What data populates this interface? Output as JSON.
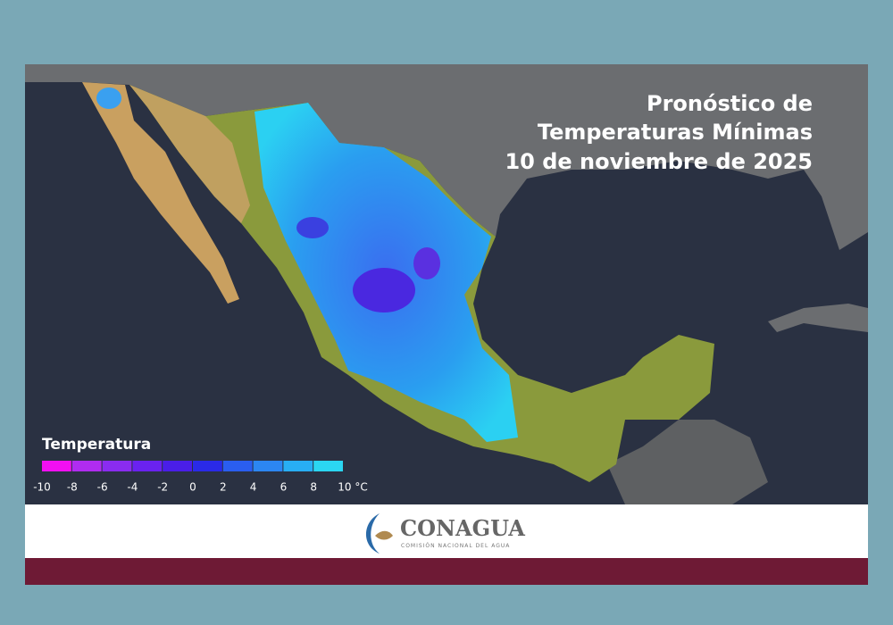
{
  "title": {
    "lines": [
      "Pronóstico de",
      "Temperaturas Mínimas",
      "10 de noviembre de 2025"
    ]
  },
  "legend": {
    "title": "Temperatura",
    "ticks": [
      -10,
      -8,
      -6,
      -4,
      -2,
      0,
      2,
      4,
      6,
      8,
      {
        "value": 10,
        "label": "10 °C"
      }
    ],
    "colors": [
      "#f20ff2",
      "#b02cf0",
      "#8a2cf0",
      "#6a22f0",
      "#4a1ee8",
      "#2a2ae8",
      "#2a5ef0",
      "#2c86f2",
      "#28aef4",
      "#2bd6f2"
    ]
  },
  "footer": {
    "logo": "CONAGUA",
    "subtitle": "COMISIÓN NACIONAL DEL AGUA"
  }
}
